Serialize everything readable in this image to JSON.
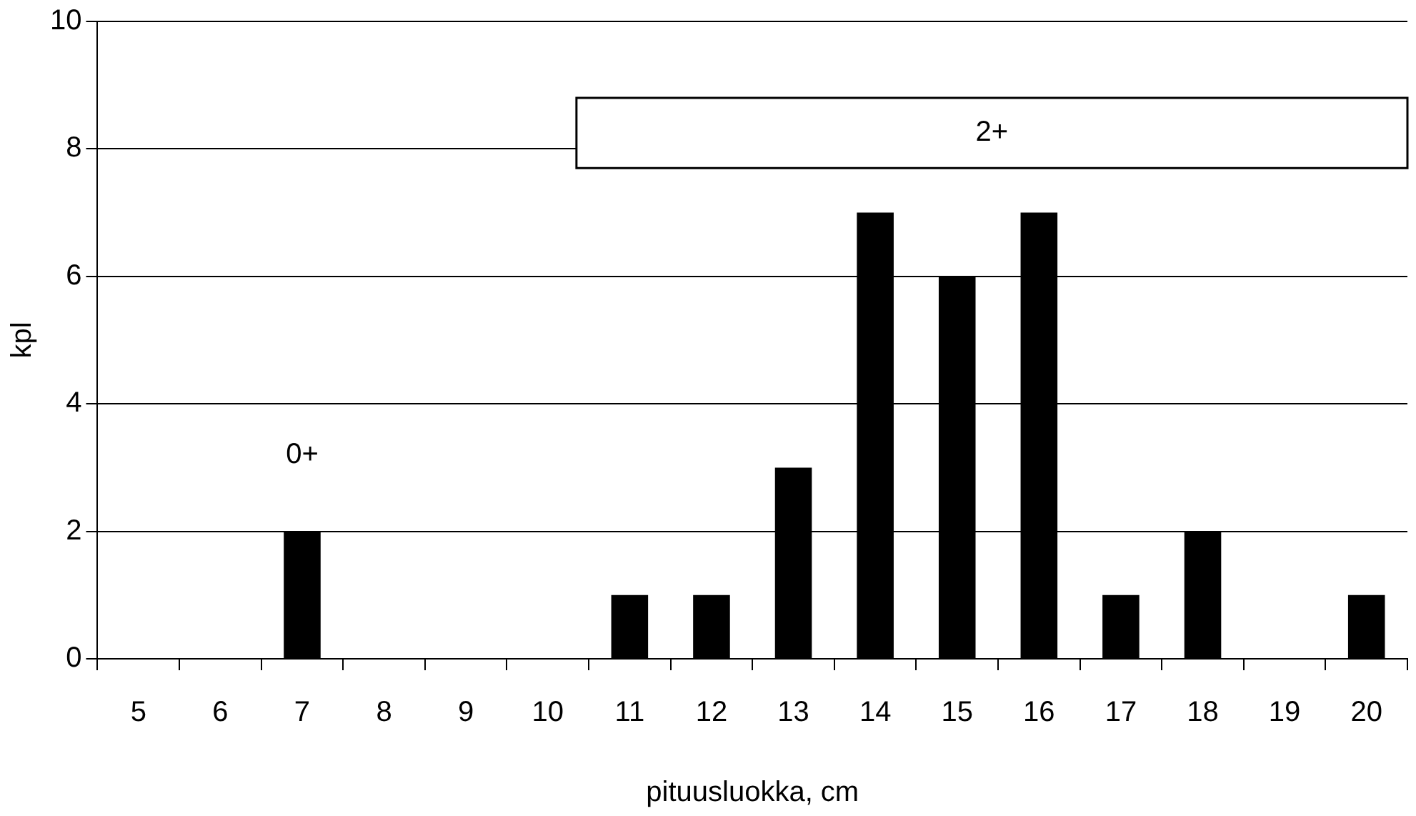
{
  "chart_data": {
    "type": "bar",
    "xlabel": "pituusluokka, cm",
    "ylabel": "kpl",
    "categories": [
      "5",
      "6",
      "7",
      "8",
      "9",
      "10",
      "11",
      "12",
      "13",
      "14",
      "15",
      "16",
      "17",
      "18",
      "19",
      "20"
    ],
    "values": [
      0,
      0,
      2,
      0,
      0,
      0,
      1,
      1,
      3,
      7,
      6,
      7,
      1,
      2,
      0,
      1
    ],
    "color": "#000000",
    "ylim": [
      0,
      10
    ],
    "yticks": [
      0,
      2,
      4,
      6,
      8,
      10
    ],
    "grid": "y",
    "legend": false,
    "annotations": [
      "0+"
    ],
    "bands": [
      {
        "axis": "x",
        "from": "11",
        "to": "20",
        "label": "2+"
      }
    ]
  }
}
